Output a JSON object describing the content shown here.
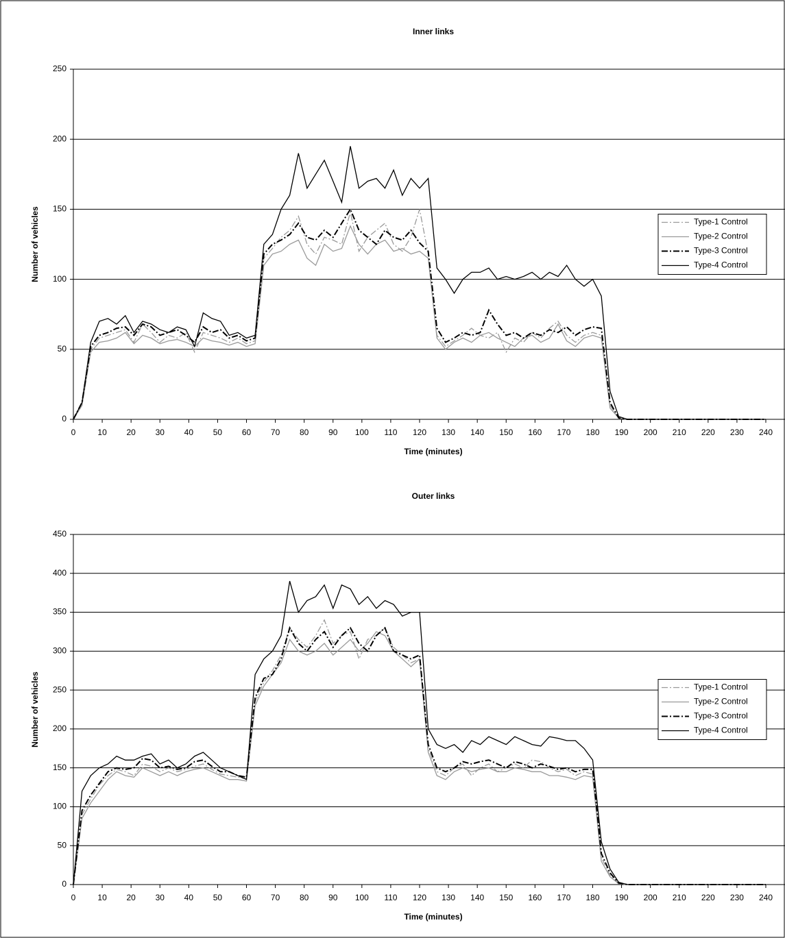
{
  "chart_data": [
    {
      "type": "line",
      "title": "Inner links",
      "x_label": "Time (minutes)",
      "y_label": "Number of vehicles",
      "x": [
        0,
        3,
        6,
        9,
        12,
        15,
        18,
        21,
        24,
        27,
        30,
        33,
        36,
        39,
        42,
        45,
        48,
        51,
        54,
        57,
        60,
        63,
        66,
        69,
        72,
        75,
        78,
        81,
        84,
        87,
        90,
        93,
        96,
        99,
        102,
        105,
        108,
        111,
        114,
        117,
        120,
        123,
        126,
        129,
        132,
        135,
        138,
        141,
        144,
        147,
        150,
        153,
        156,
        159,
        162,
        165,
        168,
        171,
        174,
        177,
        180,
        183,
        186,
        189,
        192,
        240
      ],
      "xlim": [
        0,
        240
      ],
      "ylim": [
        0,
        250
      ],
      "xticks": [
        0,
        10,
        20,
        30,
        40,
        50,
        60,
        70,
        80,
        90,
        100,
        110,
        120,
        130,
        140,
        150,
        160,
        170,
        180,
        190,
        200,
        210,
        220,
        230,
        240
      ],
      "yticks": [
        0,
        50,
        100,
        150,
        200,
        250
      ],
      "grid": true,
      "legend": "right",
      "series": [
        {
          "name": "Type-1 Control",
          "color": "#999999",
          "dash": "dash-dot",
          "values": [
            0,
            10,
            50,
            58,
            60,
            62,
            64,
            55,
            68,
            62,
            55,
            60,
            58,
            62,
            48,
            62,
            60,
            58,
            55,
            58,
            54,
            56,
            115,
            122,
            130,
            135,
            145,
            125,
            118,
            130,
            128,
            125,
            148,
            120,
            130,
            135,
            140,
            125,
            120,
            130,
            150,
            118,
            60,
            52,
            56,
            60,
            65,
            60,
            58,
            62,
            48,
            58,
            55,
            62,
            58,
            65,
            70,
            60,
            55,
            60,
            62,
            60,
            10,
            1,
            0,
            0
          ]
        },
        {
          "name": "Type-2 Control",
          "color": "#999999",
          "dash": "solid",
          "values": [
            0,
            10,
            48,
            55,
            56,
            58,
            62,
            54,
            60,
            58,
            54,
            56,
            57,
            55,
            52,
            58,
            56,
            55,
            53,
            55,
            52,
            54,
            110,
            118,
            120,
            125,
            128,
            115,
            110,
            125,
            120,
            122,
            138,
            125,
            118,
            125,
            128,
            120,
            122,
            118,
            120,
            115,
            58,
            50,
            55,
            58,
            55,
            60,
            62,
            58,
            55,
            52,
            58,
            60,
            55,
            58,
            68,
            56,
            52,
            58,
            60,
            58,
            8,
            1,
            0,
            0
          ]
        },
        {
          "name": "Type-3 Control",
          "color": "#000000",
          "dash": "dash-dot",
          "values": [
            0,
            12,
            52,
            60,
            62,
            65,
            66,
            60,
            68,
            66,
            60,
            62,
            64,
            60,
            55,
            66,
            62,
            64,
            58,
            60,
            56,
            58,
            118,
            125,
            128,
            132,
            140,
            130,
            128,
            135,
            130,
            140,
            150,
            135,
            130,
            125,
            135,
            130,
            128,
            135,
            126,
            120,
            65,
            55,
            58,
            62,
            60,
            62,
            78,
            68,
            60,
            62,
            58,
            62,
            60,
            64,
            62,
            66,
            60,
            64,
            66,
            65,
            12,
            1,
            0,
            0
          ]
        },
        {
          "name": "Type-4 Control",
          "color": "#000000",
          "dash": "solid",
          "values": [
            0,
            12,
            55,
            70,
            72,
            68,
            74,
            62,
            70,
            68,
            64,
            62,
            66,
            64,
            52,
            76,
            72,
            70,
            60,
            62,
            58,
            60,
            125,
            132,
            150,
            160,
            190,
            165,
            175,
            185,
            170,
            155,
            195,
            165,
            170,
            172,
            165,
            178,
            160,
            172,
            165,
            172,
            108,
            100,
            90,
            100,
            105,
            105,
            108,
            100,
            102,
            100,
            102,
            105,
            100,
            105,
            102,
            110,
            100,
            95,
            100,
            88,
            20,
            2,
            0,
            0
          ]
        }
      ]
    },
    {
      "type": "line",
      "title": "Outer links",
      "x_label": "Time (minutes)",
      "y_label": "Number of vehicles",
      "x": [
        0,
        3,
        6,
        9,
        12,
        15,
        18,
        21,
        24,
        27,
        30,
        33,
        36,
        39,
        42,
        45,
        48,
        51,
        54,
        57,
        60,
        63,
        66,
        69,
        72,
        75,
        78,
        81,
        84,
        87,
        90,
        93,
        96,
        99,
        102,
        105,
        108,
        111,
        114,
        117,
        120,
        123,
        126,
        129,
        132,
        135,
        138,
        141,
        144,
        147,
        150,
        153,
        156,
        159,
        162,
        165,
        168,
        171,
        174,
        177,
        180,
        183,
        186,
        189,
        192,
        240
      ],
      "xlim": [
        0,
        240
      ],
      "ylim": [
        0,
        450
      ],
      "xticks": [
        0,
        10,
        20,
        30,
        40,
        50,
        60,
        70,
        80,
        90,
        100,
        110,
        120,
        130,
        140,
        150,
        160,
        170,
        180,
        190,
        200,
        210,
        220,
        230,
        240
      ],
      "yticks": [
        0,
        50,
        100,
        150,
        200,
        250,
        300,
        350,
        400,
        450
      ],
      "grid": true,
      "legend": "right",
      "series": [
        {
          "name": "Type-1 Control",
          "color": "#999999",
          "dash": "dash-dot",
          "values": [
            0,
            90,
            110,
            128,
            140,
            148,
            145,
            140,
            155,
            152,
            145,
            150,
            145,
            148,
            152,
            155,
            148,
            142,
            140,
            138,
            136,
            235,
            260,
            275,
            295,
            330,
            315,
            305,
            320,
            340,
            310,
            320,
            325,
            290,
            315,
            320,
            330,
            305,
            295,
            285,
            290,
            175,
            145,
            140,
            150,
            155,
            140,
            150,
            155,
            145,
            150,
            155,
            150,
            160,
            158,
            150,
            145,
            148,
            140,
            145,
            142,
            35,
            12,
            2,
            0,
            0
          ]
        },
        {
          "name": "Type-2 Control",
          "color": "#999999",
          "dash": "solid",
          "values": [
            0,
            85,
            105,
            120,
            135,
            145,
            140,
            138,
            150,
            145,
            140,
            145,
            140,
            145,
            148,
            150,
            145,
            140,
            135,
            135,
            133,
            230,
            255,
            270,
            285,
            315,
            300,
            295,
            300,
            310,
            295,
            305,
            315,
            300,
            310,
            325,
            320,
            300,
            290,
            280,
            290,
            170,
            140,
            135,
            145,
            150,
            145,
            148,
            150,
            145,
            145,
            150,
            148,
            145,
            145,
            140,
            140,
            138,
            135,
            140,
            138,
            30,
            10,
            1,
            0,
            0
          ]
        },
        {
          "name": "Type-3 Control",
          "color": "#000000",
          "dash": "dash-dot",
          "values": [
            0,
            95,
            115,
            130,
            145,
            150,
            148,
            150,
            162,
            160,
            150,
            152,
            148,
            150,
            158,
            160,
            152,
            145,
            145,
            140,
            138,
            240,
            265,
            270,
            290,
            330,
            310,
            300,
            315,
            325,
            305,
            320,
            330,
            310,
            300,
            320,
            330,
            300,
            295,
            290,
            295,
            180,
            150,
            145,
            150,
            158,
            155,
            158,
            160,
            155,
            150,
            158,
            155,
            150,
            155,
            152,
            148,
            150,
            145,
            148,
            148,
            40,
            15,
            2,
            0,
            0
          ]
        },
        {
          "name": "Type-4 Control",
          "color": "#000000",
          "dash": "solid",
          "values": [
            0,
            120,
            140,
            150,
            155,
            165,
            160,
            160,
            165,
            168,
            155,
            160,
            150,
            155,
            165,
            170,
            160,
            150,
            145,
            140,
            135,
            270,
            290,
            300,
            320,
            390,
            350,
            365,
            370,
            385,
            355,
            385,
            380,
            360,
            370,
            355,
            365,
            360,
            345,
            350,
            350,
            200,
            180,
            175,
            180,
            170,
            185,
            180,
            190,
            185,
            180,
            190,
            185,
            180,
            178,
            190,
            188,
            185,
            185,
            175,
            160,
            55,
            20,
            3,
            0,
            0
          ]
        }
      ]
    }
  ]
}
